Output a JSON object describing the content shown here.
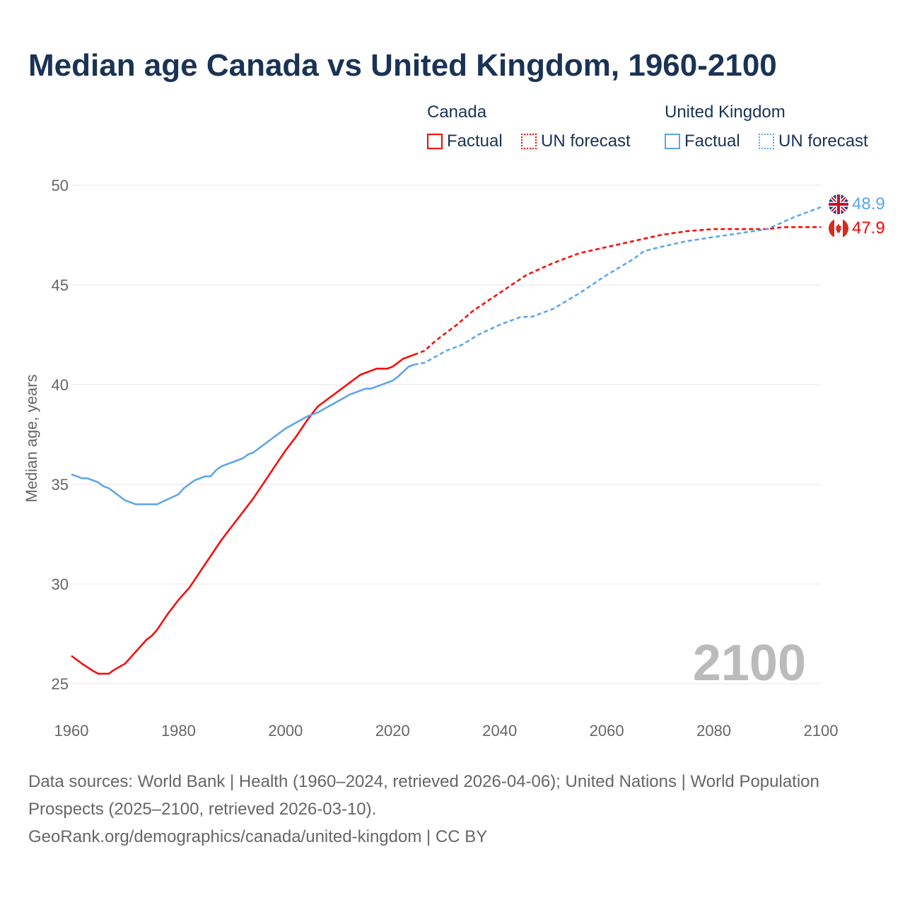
{
  "chart_data": {
    "type": "line",
    "title": "Median age Canada vs United Kingdom, 1960-2100",
    "xlabel": "",
    "ylabel": "Median age, years",
    "xlim": [
      1960,
      2100
    ],
    "ylim": [
      25,
      50
    ],
    "xticks": [
      "1960",
      "1980",
      "2000",
      "2020",
      "2040",
      "2060",
      "2080",
      "2100"
    ],
    "yticks": [
      "25",
      "30",
      "35",
      "40",
      "45",
      "50"
    ],
    "grid": true,
    "year_overlay": "2100",
    "legend": {
      "placement": "top-right",
      "groups": [
        {
          "name": "Canada",
          "items": [
            "Factual",
            "UN forecast"
          ]
        },
        {
          "name": "United Kingdom",
          "items": [
            "Factual",
            "UN forecast"
          ]
        }
      ]
    },
    "series": [
      {
        "name": "Canada",
        "segment": "Factual",
        "color": "#ff0000",
        "dashed": false,
        "x": [
          1960,
          1962,
          1964,
          1965,
          1967,
          1968,
          1970,
          1972,
          1974,
          1975,
          1976,
          1978,
          1980,
          1982,
          1984,
          1986,
          1988,
          1990,
          1992,
          1994,
          1996,
          1998,
          2000,
          2002,
          2004,
          2006,
          2008,
          2010,
          2012,
          2014,
          2016,
          2017,
          2019,
          2020,
          2022,
          2024
        ],
        "y": [
          26.4,
          26.0,
          25.65,
          25.5,
          25.5,
          25.7,
          26.0,
          26.6,
          27.2,
          27.4,
          27.7,
          28.5,
          29.2,
          29.8,
          30.6,
          31.4,
          32.2,
          32.9,
          33.6,
          34.3,
          35.1,
          35.9,
          36.7,
          37.4,
          38.2,
          38.9,
          39.3,
          39.7,
          40.1,
          40.5,
          40.7,
          40.8,
          40.8,
          40.9,
          41.3,
          41.5
        ]
      },
      {
        "name": "Canada",
        "segment": "UN forecast",
        "color": "#ff0000",
        "dashed": true,
        "x": [
          2024,
          2026,
          2028,
          2030,
          2032,
          2035,
          2040,
          2045,
          2050,
          2055,
          2060,
          2065,
          2070,
          2075,
          2080,
          2090,
          2093,
          2099,
          2100
        ],
        "y": [
          41.5,
          41.7,
          42.2,
          42.6,
          43.0,
          43.7,
          44.6,
          45.5,
          46.1,
          46.6,
          46.9,
          47.2,
          47.5,
          47.7,
          47.8,
          47.8,
          47.9,
          47.9,
          47.9
        ]
      },
      {
        "name": "United Kingdom",
        "segment": "Factual",
        "color": "#5ba4ea",
        "dashed": false,
        "x": [
          1960,
          1962,
          1963,
          1965,
          1966,
          1967,
          1969,
          1970,
          1972,
          1976,
          1980,
          1981,
          1983,
          1985,
          1986,
          1987,
          1988,
          1992,
          1993,
          1994,
          1998,
          2000,
          2002,
          2004,
          2006,
          2008,
          2010,
          2012,
          2015,
          2016,
          2020,
          2021,
          2023,
          2024
        ],
        "y": [
          35.5,
          35.3,
          35.3,
          35.1,
          34.9,
          34.8,
          34.4,
          34.2,
          34.0,
          34.0,
          34.5,
          34.8,
          35.2,
          35.4,
          35.4,
          35.7,
          35.9,
          36.3,
          36.5,
          36.6,
          37.4,
          37.8,
          38.1,
          38.4,
          38.6,
          38.9,
          39.2,
          39.5,
          39.8,
          39.8,
          40.2,
          40.4,
          40.9,
          41.0
        ]
      },
      {
        "name": "United Kingdom",
        "segment": "UN forecast",
        "color": "#5ba4ea",
        "dashed": true,
        "x": [
          2024,
          2026,
          2030,
          2033,
          2036,
          2040,
          2044,
          2046,
          2050,
          2055,
          2060,
          2065,
          2067,
          2070,
          2075,
          2080,
          2085,
          2090,
          2095,
          2100
        ],
        "y": [
          41.0,
          41.1,
          41.7,
          42.0,
          42.5,
          43.0,
          43.4,
          43.4,
          43.8,
          44.6,
          45.5,
          46.3,
          46.7,
          46.9,
          47.2,
          47.4,
          47.6,
          47.8,
          48.4,
          48.9
        ]
      }
    ],
    "end_labels": [
      {
        "name": "United Kingdom",
        "value": "48.9",
        "color": "#5ba4ea"
      },
      {
        "name": "Canada",
        "value": "47.9",
        "color": "#ff0000"
      }
    ]
  },
  "legend": {
    "canada": "Canada",
    "uk": "United Kingdom",
    "factual": "Factual",
    "forecast": "UN forecast"
  },
  "footer": {
    "line1": "Data sources: World Bank | Health (1960–2024, retrieved 2026-04-06); United Nations | World Population Prospects (2025–2100, retrieved 2026-03-10).",
    "line2": "GeoRank.org/demographics/canada/united-kingdom | CC BY"
  }
}
